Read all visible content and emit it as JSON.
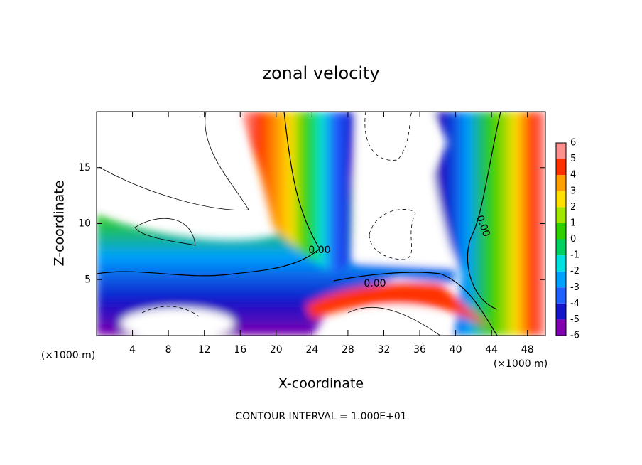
{
  "chart_data": {
    "type": "contour",
    "title": "zonal velocity",
    "x_label": "X-coordinate",
    "y_label": "Z-coordinate",
    "x_unit": "(×1000 m)",
    "y_unit": "(×1000 m)",
    "xlim": [
      0,
      50
    ],
    "ylim": [
      0,
      20
    ],
    "xticks": [
      4,
      8,
      12,
      16,
      20,
      24,
      28,
      32,
      36,
      40,
      44,
      48
    ],
    "yticks": [
      5,
      10,
      15
    ],
    "colorbar": {
      "levels": [
        -6,
        -5,
        -4,
        -3,
        -2,
        -1,
        0,
        1,
        2,
        3,
        4,
        5,
        6
      ],
      "colors": [
        "#8000b0",
        "#1414c8",
        "#2060ff",
        "#00a0ff",
        "#00e0e0",
        "#00d060",
        "#30d000",
        "#a0e800",
        "#ffe000",
        "#ffa000",
        "#ff3000",
        "#ff9090"
      ]
    },
    "contour_labels": [
      "0.00",
      "0.00",
      "0.00"
    ],
    "footer": "CONTOUR INTERVAL = 1.000E+01"
  }
}
